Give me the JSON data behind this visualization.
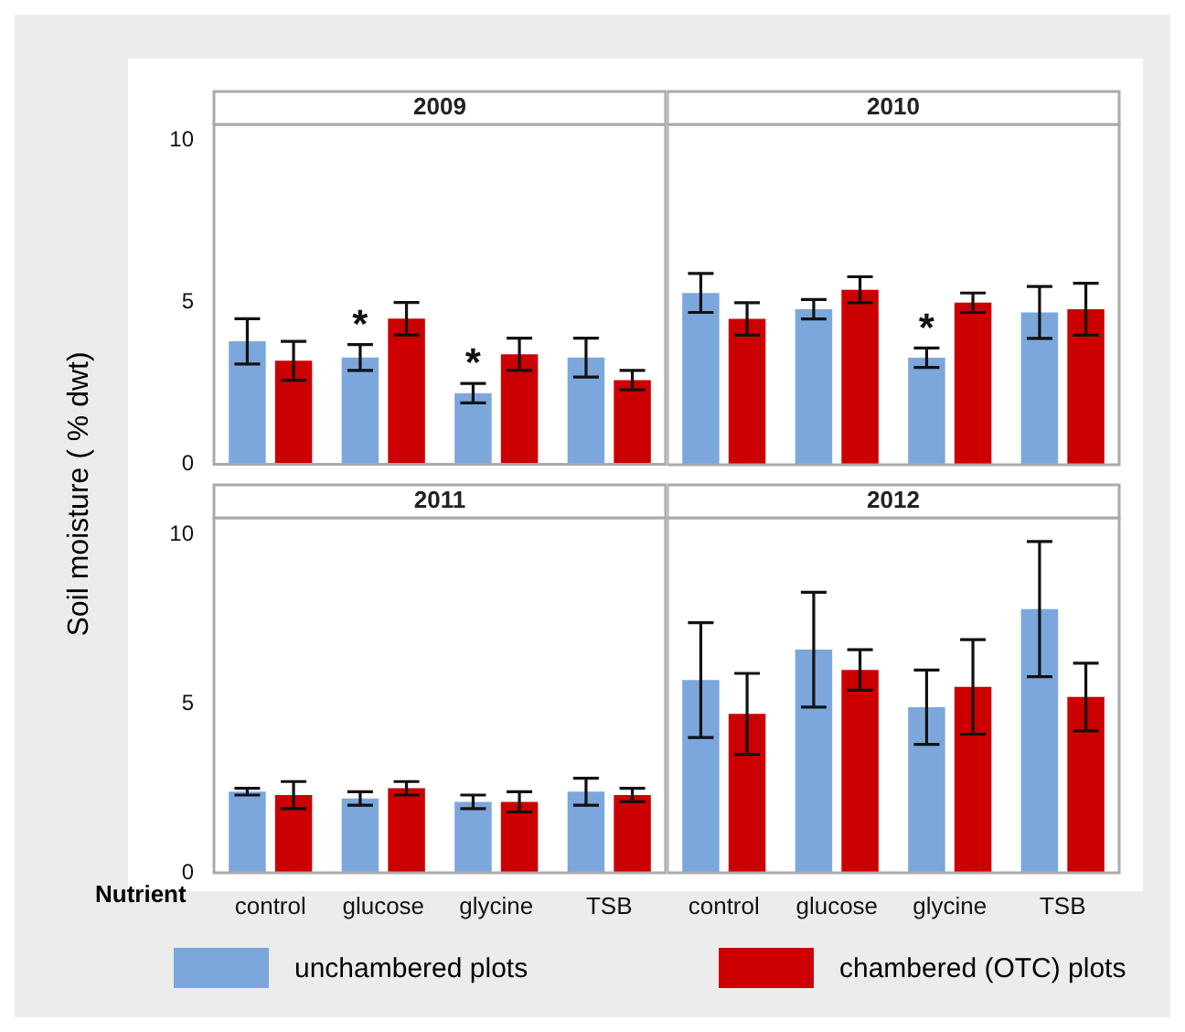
{
  "chart_data": [
    {
      "type": "bar",
      "title": "2009",
      "ylabel": "Soil moisture ( % dwt)",
      "categories": [
        "control",
        "glucose",
        "glycine",
        "TSB"
      ],
      "series": [
        {
          "name": "unchambered plots",
          "color": "#7ba7dc",
          "values": [
            3.8,
            3.3,
            2.2,
            3.3
          ],
          "errors": [
            0.7,
            0.4,
            0.3,
            0.6
          ]
        },
        {
          "name": "chambered (OTC) plots",
          "color": "#cc0000",
          "values": [
            3.2,
            4.5,
            3.4,
            2.6
          ],
          "errors": [
            0.6,
            0.5,
            0.5,
            0.3
          ]
        }
      ],
      "ylim": [
        0,
        10.5
      ],
      "yticks": [
        0,
        5,
        10
      ],
      "tick_labels": "y",
      "legend": "bottom",
      "annotations": [
        {
          "text": "*",
          "x": "glucose",
          "y": 3.3
        },
        {
          "text": "*",
          "x": "glycine",
          "y": 2.2
        }
      ]
    },
    {
      "type": "bar",
      "title": "2010",
      "categories": [
        "control",
        "glucose",
        "glycine",
        "TSB"
      ],
      "series": [
        {
          "color": "#7ba7dc",
          "values": [
            5.3,
            4.8,
            3.3,
            4.7
          ],
          "errors": [
            0.6,
            0.3,
            0.3,
            0.8
          ]
        },
        {
          "color": "#cc0000",
          "values": [
            4.5,
            5.4,
            5.0,
            4.8
          ],
          "errors": [
            0.5,
            0.4,
            0.3,
            0.8
          ]
        }
      ],
      "ylim": [
        0,
        10.5
      ],
      "yticks": [
        0,
        5,
        10
      ],
      "tick_labels": false,
      "annotations": [
        {
          "text": "*",
          "x": "glycine",
          "y": 3.3
        }
      ]
    },
    {
      "type": "bar",
      "title": "2011",
      "xlabel": "Nutrient",
      "categories": [
        "control",
        "glucose",
        "glycine",
        "TSB"
      ],
      "series": [
        {
          "color": "#7ba7dc",
          "values": [
            2.4,
            2.2,
            2.1,
            2.4
          ],
          "errors": [
            0.1,
            0.2,
            0.2,
            0.4
          ]
        },
        {
          "color": "#cc0000",
          "values": [
            2.3,
            2.5,
            2.1,
            2.3
          ],
          "errors": [
            0.4,
            0.2,
            0.3,
            0.2
          ]
        }
      ],
      "ylim": [
        0,
        10.5
      ],
      "yticks": [
        0,
        5,
        10
      ]
    },
    {
      "type": "bar",
      "title": "2012",
      "categories": [
        "control",
        "glucose",
        "glycine",
        "TSB"
      ],
      "series": [
        {
          "color": "#7ba7dc",
          "values": [
            5.7,
            6.6,
            4.9,
            7.8
          ],
          "errors": [
            1.7,
            1.7,
            1.1,
            2.0
          ]
        },
        {
          "color": "#cc0000",
          "values": [
            4.7,
            6.0,
            5.5,
            5.2
          ],
          "errors": [
            1.2,
            0.6,
            1.4,
            1.0
          ]
        }
      ],
      "ylim": [
        0,
        10.5
      ],
      "yticks": [
        0,
        5,
        10
      ],
      "tick_labels": "x"
    }
  ]
}
